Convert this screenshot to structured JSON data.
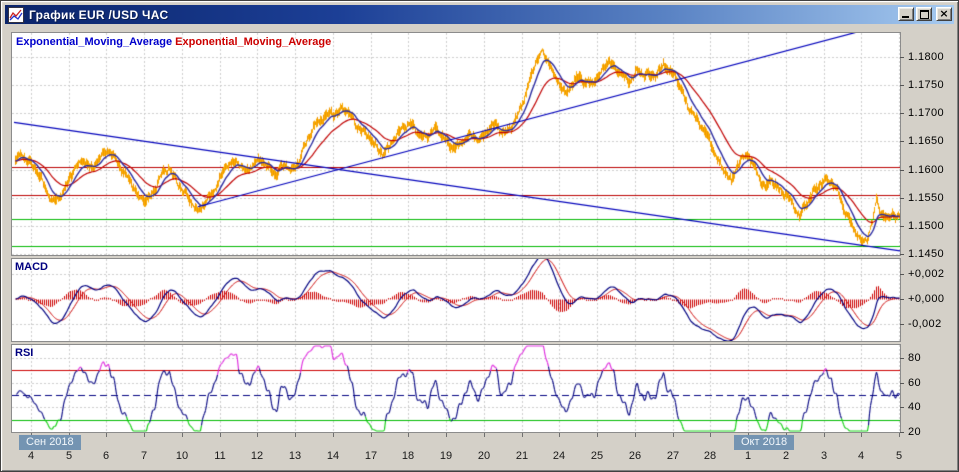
{
  "window": {
    "title": "График EUR /USD ЧАС"
  },
  "main_panel": {
    "legend": [
      {
        "label": "Exponential_Moving_Average",
        "color": "#0000CC"
      },
      {
        "label": "Exponential_Moving_Average",
        "color": "#CC0000"
      }
    ]
  },
  "macd_panel": {
    "label": "MACD"
  },
  "rsi_panel": {
    "label": "RSI"
  },
  "chart_data": {
    "type": "candlestick",
    "symbol": "EUR /USD",
    "timeframe": "ЧАС",
    "x_tick_labels": [
      "4",
      "5",
      "6",
      "7",
      "10",
      "11",
      "12",
      "13",
      "14",
      "17",
      "18",
      "19",
      "20",
      "21",
      "24",
      "25",
      "26",
      "27",
      "28",
      "1",
      "2",
      "3",
      "4",
      "5"
    ],
    "month_labels": [
      {
        "label": "Сен 2018",
        "day_index": 0
      },
      {
        "label": "Окт 2018",
        "day_index": 19
      }
    ],
    "price_panel": {
      "ylim": [
        1.1448,
        1.1843
      ],
      "yticks": [
        {
          "value": 1.18,
          "label": "1.1800"
        },
        {
          "value": 1.175,
          "label": "1.1750"
        },
        {
          "value": 1.17,
          "label": "1.1700"
        },
        {
          "value": 1.165,
          "label": "1.1650"
        },
        {
          "value": 1.16,
          "label": "1.1600"
        },
        {
          "value": 1.155,
          "label": "1.1550"
        },
        {
          "value": 1.15,
          "label": "1.1500"
        },
        {
          "value": 1.145,
          "label": "1.1450"
        }
      ],
      "bar_color": "#F7A300",
      "ema_fast_color": "#2A2AA0",
      "ema_slow_color": "#C00000",
      "trendlines": [
        {
          "name": "descending-trendline",
          "color": "#0000BB",
          "from": [
            -0.45,
            1.1684
          ],
          "to": [
            23.1,
            1.1455
          ]
        },
        {
          "name": "ascending-trendline",
          "color": "#0000BB",
          "from": [
            4.42,
            1.1534
          ],
          "to": [
            23.0,
            1.1864
          ]
        }
      ],
      "hlines": [
        {
          "price": 1.1605,
          "color": "#BB0000"
        },
        {
          "price": 1.1555,
          "color": "#BB0000"
        },
        {
          "price": 1.1512,
          "color": "#00B900"
        },
        {
          "price": 1.1464,
          "color": "#00B900"
        }
      ],
      "price_path_day_price": [
        [
          -0.45,
          1.1612
        ],
        [
          -0.25,
          1.1626
        ],
        [
          -0.05,
          1.1617
        ],
        [
          0.15,
          1.1598
        ],
        [
          0.35,
          1.1565
        ],
        [
          0.55,
          1.1542
        ],
        [
          0.75,
          1.1556
        ],
        [
          0.95,
          1.1574
        ],
        [
          1.15,
          1.16
        ],
        [
          1.4,
          1.1618
        ],
        [
          1.6,
          1.1604
        ],
        [
          1.85,
          1.1621
        ],
        [
          2.05,
          1.1632
        ],
        [
          2.25,
          1.1619
        ],
        [
          2.45,
          1.1597
        ],
        [
          2.65,
          1.1572
        ],
        [
          2.85,
          1.1547
        ],
        [
          3.05,
          1.155
        ],
        [
          3.25,
          1.1562
        ],
        [
          3.45,
          1.1589
        ],
        [
          3.65,
          1.1601
        ],
        [
          3.85,
          1.1583
        ],
        [
          4.05,
          1.1561
        ],
        [
          4.25,
          1.1537
        ],
        [
          4.42,
          1.1522
        ],
        [
          4.6,
          1.1546
        ],
        [
          4.8,
          1.1561
        ],
        [
          5.0,
          1.1581
        ],
        [
          5.2,
          1.1606
        ],
        [
          5.45,
          1.1619
        ],
        [
          5.7,
          1.1596
        ],
        [
          5.9,
          1.1606
        ],
        [
          6.1,
          1.1619
        ],
        [
          6.3,
          1.1606
        ],
        [
          6.5,
          1.1591
        ],
        [
          6.7,
          1.1606
        ],
        [
          6.9,
          1.1596
        ],
        [
          7.1,
          1.1621
        ],
        [
          7.3,
          1.1651
        ],
        [
          7.5,
          1.1673
        ],
        [
          7.7,
          1.1691
        ],
        [
          7.9,
          1.1706
        ],
        [
          8.1,
          1.1699
        ],
        [
          8.3,
          1.1706
        ],
        [
          8.5,
          1.1693
        ],
        [
          8.7,
          1.1676
        ],
        [
          8.9,
          1.1661
        ],
        [
          9.1,
          1.1639
        ],
        [
          9.3,
          1.1629
        ],
        [
          9.5,
          1.1646
        ],
        [
          9.7,
          1.1663
        ],
        [
          9.9,
          1.1673
        ],
        [
          10.1,
          1.1681
        ],
        [
          10.3,
          1.1663
        ],
        [
          10.5,
          1.1656
        ],
        [
          10.7,
          1.1669
        ],
        [
          10.9,
          1.1661
        ],
        [
          11.1,
          1.1646
        ],
        [
          11.3,
          1.1639
        ],
        [
          11.5,
          1.1653
        ],
        [
          11.7,
          1.1663
        ],
        [
          11.9,
          1.1656
        ],
        [
          12.1,
          1.1669
        ],
        [
          12.3,
          1.1676
        ],
        [
          12.5,
          1.1666
        ],
        [
          12.7,
          1.1679
        ],
        [
          12.9,
          1.1696
        ],
        [
          13.1,
          1.1731
        ],
        [
          13.25,
          1.1769
        ],
        [
          13.4,
          1.1801
        ],
        [
          13.55,
          1.1812
        ],
        [
          13.7,
          1.1789
        ],
        [
          13.85,
          1.1761
        ],
        [
          14.0,
          1.1753
        ],
        [
          14.15,
          1.1736
        ],
        [
          14.3,
          1.1753
        ],
        [
          14.5,
          1.1763
        ],
        [
          14.7,
          1.1749
        ],
        [
          14.9,
          1.1759
        ],
        [
          15.1,
          1.1776
        ],
        [
          15.25,
          1.1791
        ],
        [
          15.45,
          1.1779
        ],
        [
          15.65,
          1.1769
        ],
        [
          15.85,
          1.1761
        ],
        [
          16.05,
          1.1773
        ],
        [
          16.25,
          1.1763
        ],
        [
          16.45,
          1.1769
        ],
        [
          16.6,
          1.1776
        ],
        [
          16.75,
          1.1789
        ],
        [
          16.9,
          1.1771
        ],
        [
          17.05,
          1.1766
        ],
        [
          17.2,
          1.1746
        ],
        [
          17.4,
          1.1716
        ],
        [
          17.6,
          1.1691
        ],
        [
          17.8,
          1.1669
        ],
        [
          18.0,
          1.1649
        ],
        [
          18.2,
          1.1619
        ],
        [
          18.4,
          1.1593
        ],
        [
          18.55,
          1.1573
        ],
        [
          18.7,
          1.1606
        ],
        [
          18.85,
          1.1623
        ],
        [
          19.0,
          1.1629
        ],
        [
          19.15,
          1.1606
        ],
        [
          19.3,
          1.1579
        ],
        [
          19.45,
          1.1563
        ],
        [
          19.6,
          1.1586
        ],
        [
          19.75,
          1.1573
        ],
        [
          19.9,
          1.1563
        ],
        [
          20.05,
          1.1549
        ],
        [
          20.2,
          1.1531
        ],
        [
          20.35,
          1.1517
        ],
        [
          20.5,
          1.1541
        ],
        [
          20.65,
          1.1556
        ],
        [
          20.8,
          1.1566
        ],
        [
          21.0,
          1.1576
        ],
        [
          21.2,
          1.1581
        ],
        [
          21.35,
          1.1566
        ],
        [
          21.5,
          1.1536
        ],
        [
          21.65,
          1.1511
        ],
        [
          21.8,
          1.1489
        ],
        [
          22.0,
          1.1473
        ],
        [
          22.15,
          1.1483
        ],
        [
          22.3,
          1.1511
        ],
        [
          22.4,
          1.1549
        ],
        [
          22.5,
          1.1519
        ],
        [
          22.65,
          1.1509
        ],
        [
          22.8,
          1.1526
        ],
        [
          22.9,
          1.1516
        ],
        [
          23.02,
          1.1521
        ]
      ]
    },
    "macd_panel": {
      "ylim": [
        -0.0034,
        0.0033
      ],
      "yticks": [
        {
          "value": 0.002,
          "label": "+0,002"
        },
        {
          "value": 0.0,
          "label": "+0,000"
        },
        {
          "value": -0.002,
          "label": "-0,002"
        }
      ],
      "line_color": "#000080",
      "signal_color": "#CC0000",
      "histogram_color": "#CC0000",
      "gridline_values": [
        0.002,
        -0.002
      ]
    },
    "rsi_panel": {
      "ylim": [
        19,
        91
      ],
      "yticks": [
        {
          "value": 80,
          "label": "80"
        },
        {
          "value": 60,
          "label": "60"
        },
        {
          "value": 40,
          "label": "40"
        },
        {
          "value": 20,
          "label": "20"
        }
      ],
      "line_color": "#000080",
      "levels": {
        "overbought": 70,
        "midline": 50,
        "oversold": 30
      },
      "level_colors": {
        "overbought": "#CC0000",
        "midline": "#000080",
        "oversold": "#00BB00"
      },
      "above_color": "#DD22DD",
      "below_color": "#00CC00"
    }
  }
}
